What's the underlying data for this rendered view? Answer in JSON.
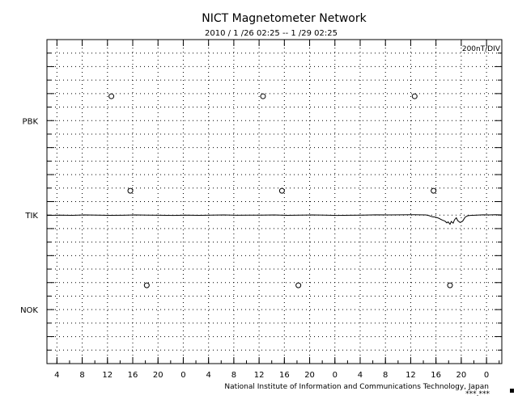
{
  "chart_data": {
    "type": "line",
    "title": "NICT Magnetometer Network",
    "subtitle": "2010 /  1 /26   02:25 --  1 /29   02:25",
    "scale_label": "200nT/DIV",
    "credit": "National Institute of Information and Communications Technology, Japan",
    "credit_suffix": "***.***",
    "x_range_hours": [
      0,
      72
    ],
    "x_tick_labels": [
      "4",
      "8",
      "12",
      "16",
      "20",
      "0",
      "4",
      "8",
      "12",
      "16",
      "20",
      "0",
      "4",
      "8",
      "12",
      "16",
      "20",
      "0"
    ],
    "x_tick_offsets_hours": [
      1.58,
      5.58,
      9.58,
      13.58,
      17.58,
      21.58,
      25.58,
      29.58,
      33.58,
      37.58,
      41.58,
      45.58,
      49.58,
      53.58,
      57.58,
      61.58,
      65.58,
      69.58
    ],
    "y_divisions": 24,
    "stations": [
      {
        "name": "PBK",
        "baseline_div": 6,
        "midnight_marker_offsets_hours": [
          10.2,
          34.2,
          58.2
        ]
      },
      {
        "name": "TIK",
        "baseline_div": 13,
        "midnight_marker_offsets_hours": [
          13.2,
          37.2,
          61.2
        ]
      },
      {
        "name": "NOK",
        "baseline_div": 20,
        "midnight_marker_offsets_hours": [
          15.8,
          39.8,
          63.8
        ]
      }
    ],
    "series": [
      {
        "name": "TIK",
        "unit": "nT",
        "x_hours": [
          0,
          2,
          4,
          6,
          8,
          10,
          12,
          14,
          16,
          18,
          20,
          22,
          24,
          26,
          28,
          30,
          32,
          34,
          36,
          38,
          40,
          42,
          44,
          46,
          48,
          50,
          52,
          54,
          56,
          58,
          60,
          60.5,
          61,
          61.5,
          62,
          62.5,
          63,
          63.3,
          63.5,
          63.8,
          64,
          64.3,
          64.5,
          64.8,
          65,
          65.4,
          65.8,
          66.2,
          66.6,
          67,
          68,
          69,
          70,
          71,
          72
        ],
        "values": [
          -5,
          0,
          -3,
          2,
          0,
          -4,
          -2,
          3,
          0,
          -2,
          -5,
          0,
          -3,
          0,
          2,
          -2,
          -1,
          0,
          2,
          -4,
          -1,
          2,
          0,
          -5,
          -2,
          0,
          4,
          2,
          4,
          5,
          2,
          -8,
          -25,
          -30,
          -45,
          -70,
          -90,
          -115,
          -100,
          -135,
          -95,
          -120,
          -70,
          -40,
          -80,
          -110,
          -90,
          -30,
          -10,
          -5,
          0,
          4,
          2,
          5,
          3
        ]
      }
    ]
  }
}
